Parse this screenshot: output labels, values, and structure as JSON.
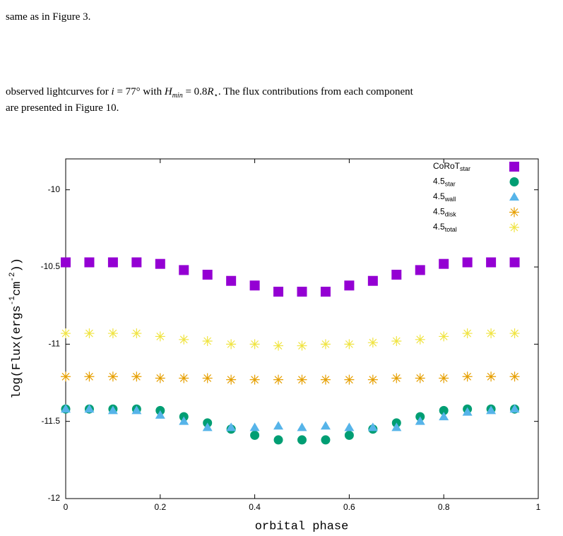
{
  "caption_tail": "same as in Figure 3.",
  "paragraph": {
    "line1": [
      "observed lightcurves for ",
      "i",
      " = 77° with ",
      "H",
      "min",
      " = 0.8",
      "R",
      "⋆",
      ". The flux contributions from each component"
    ],
    "line2": "are presented in Figure 10."
  },
  "chart_data": {
    "type": "scatter",
    "xlabel": "orbital phase",
    "ylabel": [
      "log(Flux(ergs",
      "-1",
      "cm",
      "-2",
      "))"
    ],
    "x": [
      0,
      0.05,
      0.1,
      0.15,
      0.2,
      0.25,
      0.3,
      0.35,
      0.4,
      0.45,
      0.5,
      0.55,
      0.6,
      0.65,
      0.7,
      0.75,
      0.8,
      0.85,
      0.9,
      0.95
    ],
    "xlim": [
      0,
      1
    ],
    "xticks": [
      0,
      0.2,
      0.4,
      0.6,
      0.8,
      1
    ],
    "ylim": [
      -12,
      -9.8
    ],
    "yticks": [
      -12,
      -11.5,
      -11,
      -10.5,
      -10
    ],
    "legend": "top-right",
    "series": [
      {
        "name": "CoRoT",
        "name_sub": "star",
        "marker": "square",
        "color": "#9400d3",
        "values": [
          -10.47,
          -10.47,
          -10.47,
          -10.47,
          -10.48,
          -10.52,
          -10.55,
          -10.59,
          -10.62,
          -10.66,
          -10.66,
          -10.66,
          -10.62,
          -10.59,
          -10.55,
          -10.52,
          -10.48,
          -10.47,
          -10.47,
          -10.47
        ]
      },
      {
        "name": "4.5",
        "name_sub": "star",
        "marker": "circle",
        "color": "#009e73",
        "values": [
          -11.42,
          -11.42,
          -11.42,
          -11.42,
          -11.43,
          -11.47,
          -11.51,
          -11.55,
          -11.59,
          -11.62,
          -11.62,
          -11.62,
          -11.59,
          -11.55,
          -11.51,
          -11.47,
          -11.43,
          -11.42,
          -11.42,
          -11.42
        ]
      },
      {
        "name": "4.5",
        "name_sub": "wall",
        "marker": "triangle",
        "color": "#56b4e9",
        "values": [
          -11.42,
          -11.42,
          -11.43,
          -11.43,
          -11.46,
          -11.5,
          -11.54,
          -11.54,
          -11.54,
          -11.53,
          -11.54,
          -11.53,
          -11.54,
          -11.54,
          -11.54,
          -11.5,
          -11.47,
          -11.44,
          -11.43,
          -11.42
        ]
      },
      {
        "name": "4.5",
        "name_sub": "disk",
        "marker": "asterisk",
        "color": "#e69f00",
        "values": [
          -11.21,
          -11.21,
          -11.21,
          -11.21,
          -11.22,
          -11.22,
          -11.22,
          -11.23,
          -11.23,
          -11.23,
          -11.23,
          -11.23,
          -11.23,
          -11.23,
          -11.22,
          -11.22,
          -11.22,
          -11.21,
          -11.21,
          -11.21
        ]
      },
      {
        "name": "4.5",
        "name_sub": "total",
        "marker": "asterisk",
        "color": "#f0e442",
        "values": [
          -10.93,
          -10.93,
          -10.93,
          -10.93,
          -10.95,
          -10.97,
          -10.98,
          -11.0,
          -11.0,
          -11.01,
          -11.01,
          -11.0,
          -11.0,
          -10.99,
          -10.98,
          -10.97,
          -10.95,
          -10.93,
          -10.93,
          -10.93
        ]
      }
    ]
  }
}
